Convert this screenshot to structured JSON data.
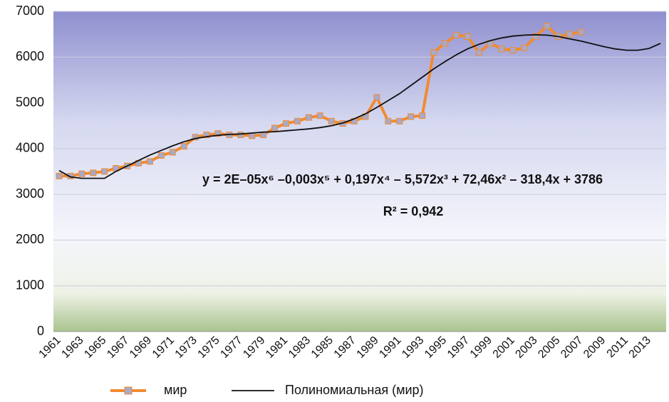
{
  "chart_data": {
    "type": "line",
    "categories": [
      "1961",
      null,
      "1963",
      null,
      "1965",
      null,
      "1967",
      null,
      "1969",
      null,
      "1971",
      null,
      "1973",
      null,
      "1975",
      null,
      "1977",
      null,
      "1979",
      null,
      "1981",
      null,
      "1983",
      null,
      "1985",
      null,
      "1987",
      null,
      "1989",
      null,
      "1991",
      null,
      "1993",
      null,
      "1995",
      null,
      "1997",
      null,
      "1999",
      null,
      "2001",
      null,
      "2003",
      null,
      "2005",
      null,
      "2007",
      null,
      "2009",
      null,
      "2011",
      null,
      "2013",
      null
    ],
    "series": [
      {
        "name": "мир",
        "color": "#f28a30",
        "marker_color": "#a8aac8",
        "values": [
          3400,
          3400,
          3450,
          3470,
          3500,
          3570,
          3620,
          3680,
          3720,
          3850,
          3920,
          4050,
          4250,
          4300,
          4330,
          4300,
          4300,
          4280,
          4300,
          4450,
          4550,
          4600,
          4680,
          4720,
          4600,
          4550,
          4600,
          4700,
          5120,
          4600,
          4600,
          4700,
          4720,
          6100,
          6300,
          6480,
          6450,
          6100,
          6300,
          6180,
          6150,
          6200,
          6450,
          6680,
          6450,
          6500,
          6550,
          null,
          null,
          null,
          null,
          null,
          null,
          null
        ]
      },
      {
        "name": "Полиномиальная (мир)",
        "color": "#111111",
        "values": [
          3520,
          3380,
          3350,
          3350,
          3350,
          3500,
          3620,
          3740,
          3860,
          3960,
          4060,
          4150,
          4220,
          4260,
          4290,
          4310,
          4320,
          4340,
          4360,
          4370,
          4390,
          4410,
          4430,
          4460,
          4500,
          4560,
          4650,
          4760,
          4900,
          5050,
          5200,
          5380,
          5560,
          5740,
          5900,
          6050,
          6180,
          6280,
          6360,
          6420,
          6460,
          6480,
          6490,
          6480,
          6450,
          6400,
          6350,
          6290,
          6230,
          6180,
          6150,
          6150,
          6190,
          6300
        ]
      }
    ],
    "annotations": [
      "y = 2E–05x⁶ –0,003x⁵ + 0,197x⁴ – 5,572x³ + 72,46x² – 318,4x + 3786",
      "R² = 0,942"
    ],
    "ylim": [
      0,
      7000
    ],
    "yticks": [
      0,
      1000,
      2000,
      3000,
      4000,
      5000,
      6000,
      7000
    ],
    "grid": true,
    "legend": "bottom"
  }
}
